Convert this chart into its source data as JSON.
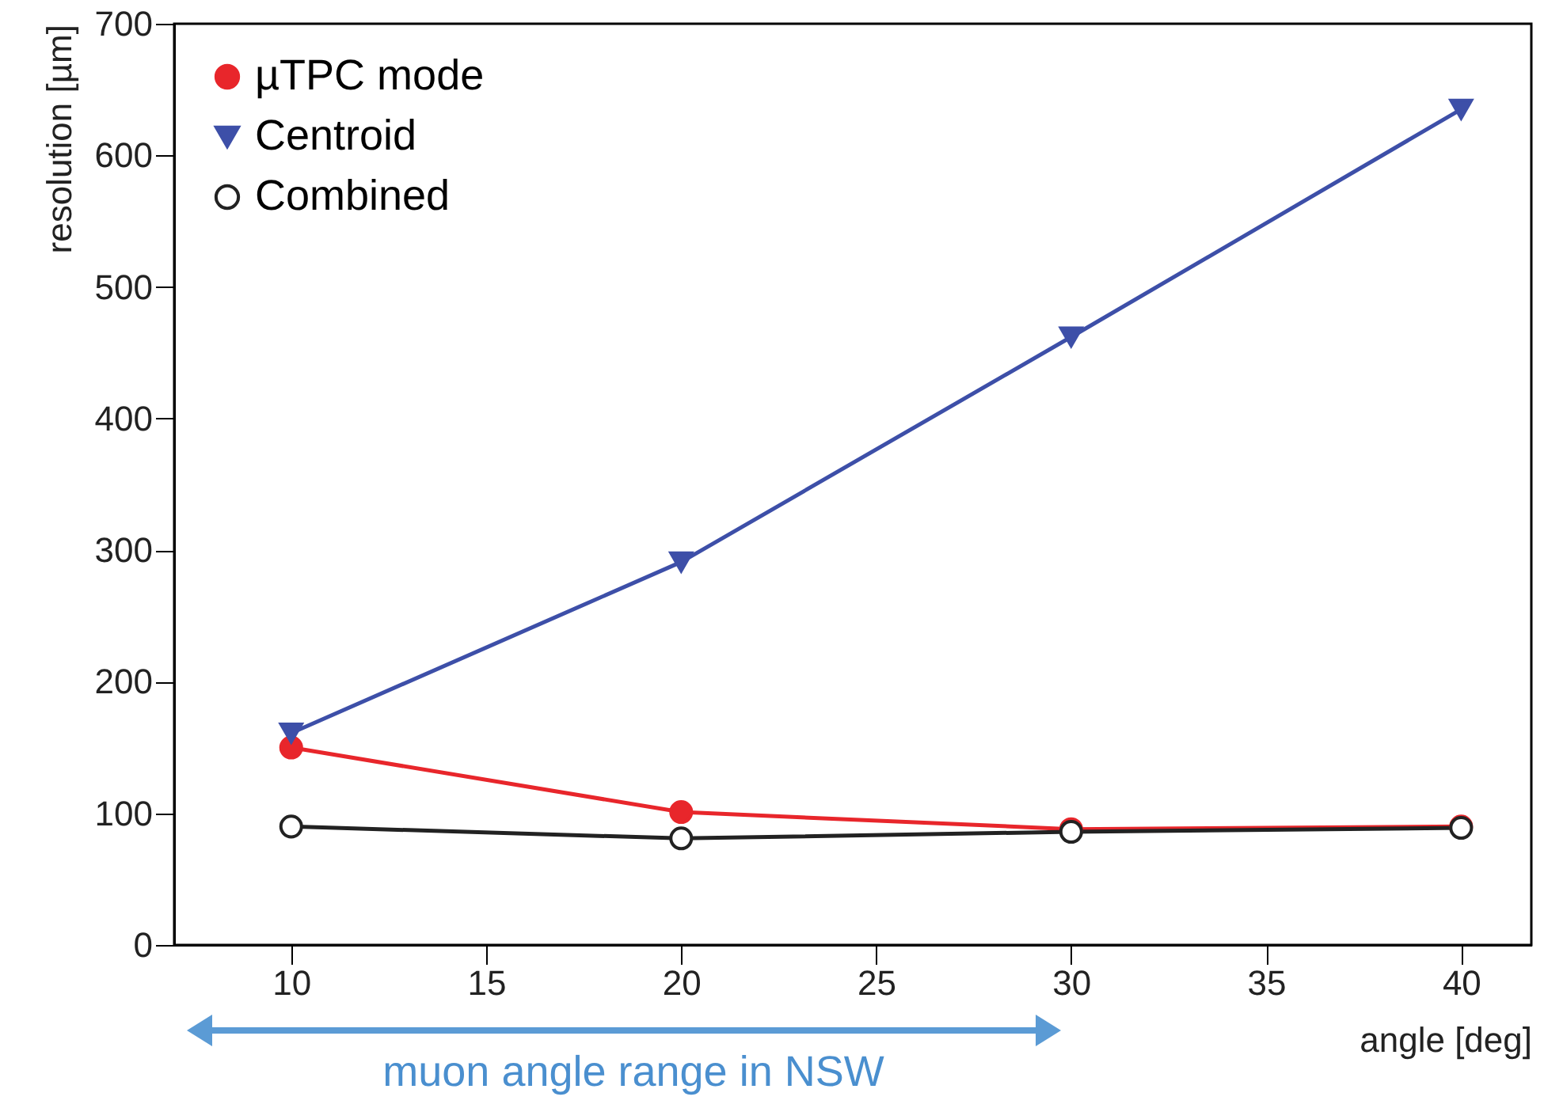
{
  "chart_data": {
    "type": "line",
    "xlabel": "angle [deg]",
    "ylabel": "resolution [µm]",
    "x": [
      10,
      20,
      30,
      40
    ],
    "series": [
      {
        "name": "µTPC mode",
        "color": "#e8262b",
        "marker": "circle",
        "values": [
          150,
          101,
          88,
          90
        ]
      },
      {
        "name": "Centroid",
        "color": "#3d4fa8",
        "marker": "triangle",
        "values": [
          161,
          291,
          462,
          635
        ]
      },
      {
        "name": "Combined",
        "color": "#222222",
        "marker": "circle",
        "values": [
          90,
          81,
          86,
          89
        ]
      }
    ],
    "xlim": [
      7,
      41.8
    ],
    "xticks": [
      10,
      15,
      20,
      25,
      30,
      35,
      40
    ],
    "ylim": [
      0,
      700
    ],
    "yticks": [
      0,
      100,
      200,
      300,
      400,
      500,
      600,
      700
    ],
    "grid": false,
    "legend": "top left",
    "annotations": [
      "muon angle range in NSW"
    ]
  }
}
